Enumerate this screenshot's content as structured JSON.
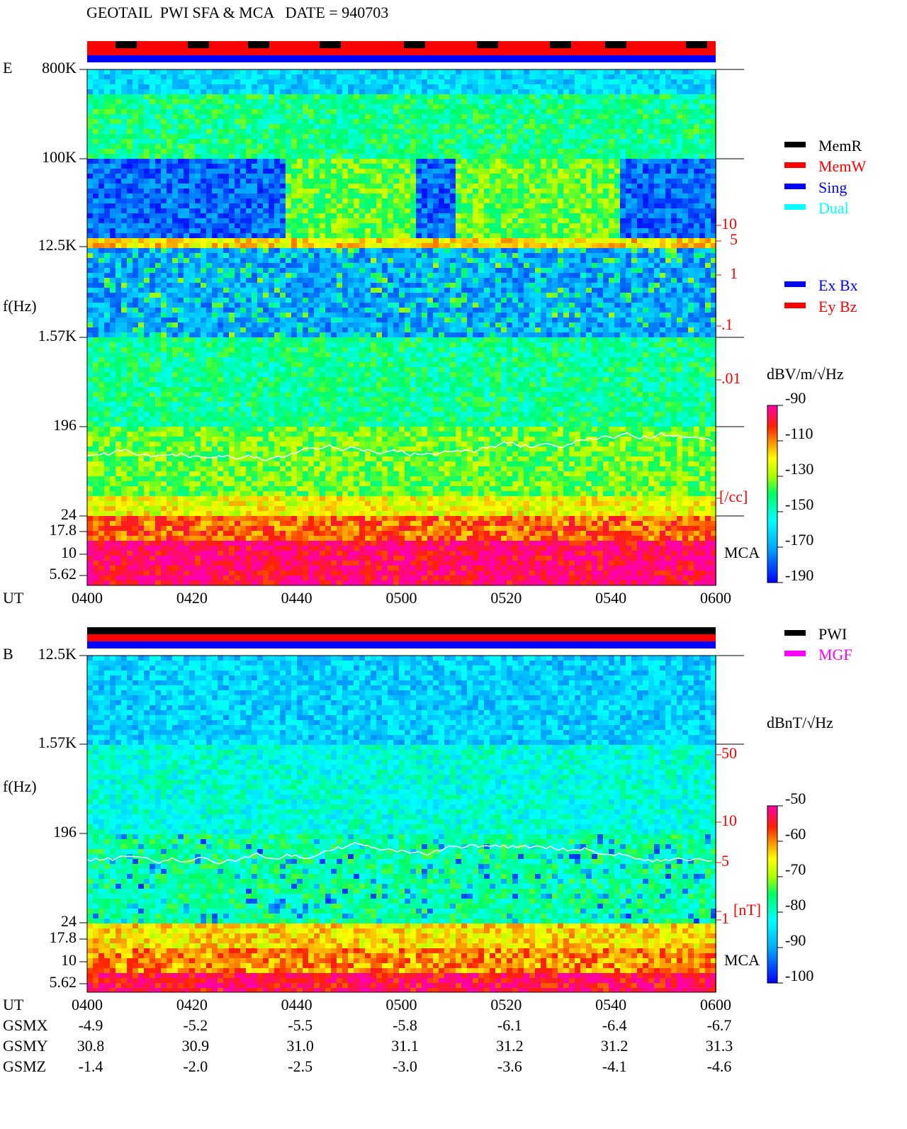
{
  "title": "GEOTAIL  PWI SFA & MCA   DATE = 940703",
  "panels": [
    {
      "label": "E",
      "y_label": "f(Hz)",
      "x_label": "UT",
      "freq_ticks": [
        "800K",
        "100K",
        "12.5K",
        "1.57K",
        "196",
        "24",
        "17.8",
        "10",
        "5.62"
      ],
      "x_ticks": [
        "0400",
        "0420",
        "0440",
        "0500",
        "0520",
        "0540",
        "0600"
      ],
      "mca_label": "MCA",
      "right_scale": [
        "10",
        "5",
        "1",
        ".1",
        ".01",
        "[/cc]"
      ],
      "legend": [
        "MemR",
        "MemW",
        "Sing",
        "Dual"
      ],
      "legend2": [
        "Ex Bx",
        "Ey Bz"
      ],
      "colorbar_unit": "dBV/m/√Hz",
      "colorbar_ticks": [
        -90,
        -110,
        -130,
        -150,
        -170,
        -190
      ]
    },
    {
      "label": "B",
      "y_label": "f(Hz)",
      "x_label": "UT",
      "freq_ticks": [
        "12.5K",
        "1.57K",
        "196",
        "24",
        "17.8",
        "10",
        "5.62"
      ],
      "x_ticks": [
        "0400",
        "0420",
        "0440",
        "0500",
        "0520",
        "0540",
        "0600"
      ],
      "mca_label": "MCA",
      "right_scale": [
        "50",
        "10",
        "5",
        "1",
        "[nT]"
      ],
      "legend": [
        "PWI",
        "MGF"
      ],
      "colorbar_unit": "dBnT/√Hz",
      "colorbar_ticks": [
        -50,
        -60,
        -70,
        -80,
        -90,
        -100
      ]
    }
  ],
  "orbit": [
    {
      "name": "GSMX",
      "values": [
        "-4.9",
        "-5.2",
        "-5.5",
        "-5.8",
        "-6.1",
        "-6.4",
        "-6.7"
      ]
    },
    {
      "name": "GSMY",
      "values": [
        "30.8",
        "30.9",
        "31.0",
        "31.1",
        "31.2",
        "31.2",
        "31.3"
      ]
    },
    {
      "name": "GSMZ",
      "values": [
        "-1.4",
        "-2.0",
        "-2.5",
        "-3.0",
        "-3.6",
        "-4.1",
        "-4.6"
      ]
    }
  ]
}
